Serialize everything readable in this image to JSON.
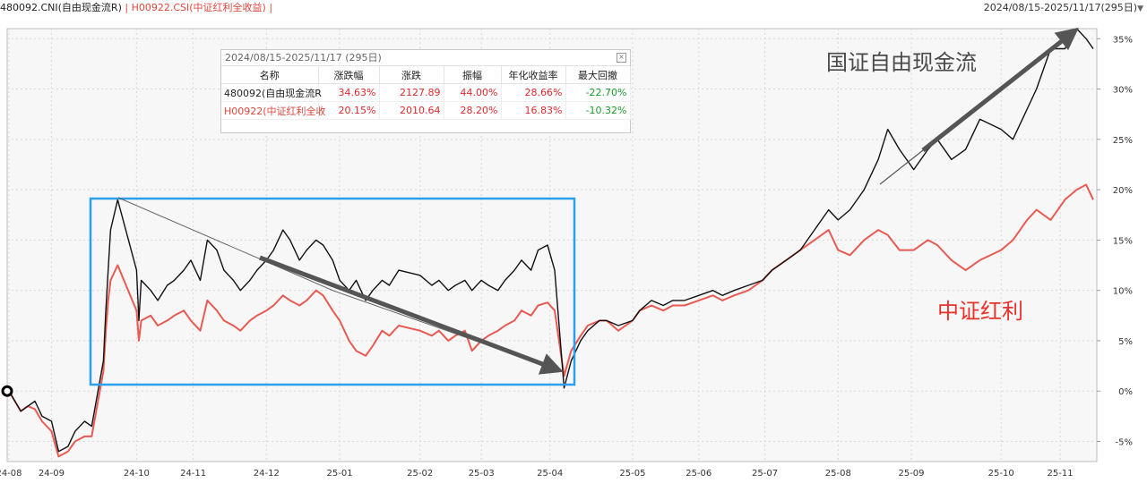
{
  "header": {
    "series1_label": "480092.CNI(自由现金流R)",
    "separator": "|",
    "series2_label": "H00922.CSI(中证红利全收益)",
    "range_label": "2024/08/15-2025/11/17(295日)",
    "range_arrow": "▼"
  },
  "stats": {
    "title": "2024/08/15-2025/11/17 (295日)",
    "close_glyph": "×",
    "columns": [
      "名称",
      "涨跌幅",
      "涨跌",
      "振幅",
      "年化收益率",
      "最大回撤"
    ],
    "rows": [
      {
        "name": "480092(自由现金流R",
        "change_pct": "34.63%",
        "change": "2127.89",
        "amplitude": "44.00%",
        "annual": "28.66%",
        "drawdown": "-22.70%"
      },
      {
        "name": "H00922(中证红利全收",
        "change_pct": "20.15%",
        "change": "2010.64",
        "amplitude": "28.20%",
        "annual": "16.83%",
        "drawdown": "-10.32%"
      }
    ]
  },
  "annotations": {
    "label_black": "国证自由现金流",
    "label_red": "中证红利"
  },
  "colors": {
    "series1": "#111111",
    "series2": "#e85a52",
    "highlight_box": "#2ea0ea",
    "arrow": "#555555",
    "grid": "#d8d8d8"
  },
  "chart_data": {
    "type": "line",
    "ylim": [
      -7,
      36
    ],
    "y_ticks": [
      "35%",
      "30%",
      "25%",
      "20%",
      "15%",
      "10%",
      "5%",
      "0%",
      "-5%"
    ],
    "y_tick_values": [
      35,
      30,
      25,
      20,
      15,
      10,
      5,
      0,
      -5
    ],
    "x_tick_labels": [
      "24-08",
      "24-09",
      "24-10",
      "24-11",
      "24-12",
      "25-01",
      "25-02",
      "25-03",
      "25-04",
      "25-05",
      "25-06",
      "25-07",
      "25-08",
      "25-09",
      "25-10",
      "25-11"
    ],
    "x_ticks": [
      "2024-08-15",
      "2024-09-02",
      "2024-10-08",
      "2024-11-01",
      "2024-12-02",
      "2025-01-02",
      "2025-02-05",
      "2025-03-03",
      "2025-04-01",
      "2025-05-06",
      "2025-06-03",
      "2025-07-01",
      "2025-08-01",
      "2025-09-01",
      "2025-10-09",
      "2025-11-03"
    ],
    "grid": true,
    "series": [
      {
        "name": "480092.CNI(自由现金流R)",
        "points": [
          [
            "2024-08-15",
            0
          ],
          [
            "2024-08-20",
            -2
          ],
          [
            "2024-08-23",
            -1.5
          ],
          [
            "2024-08-26",
            -1
          ],
          [
            "2024-08-29",
            -2.5
          ],
          [
            "2024-09-02",
            -3
          ],
          [
            "2024-09-05",
            -6
          ],
          [
            "2024-09-09",
            -5.5
          ],
          [
            "2024-09-12",
            -4
          ],
          [
            "2024-09-16",
            -3
          ],
          [
            "2024-09-19",
            -3.5
          ],
          [
            "2024-09-24",
            3
          ],
          [
            "2024-09-25",
            8
          ],
          [
            "2024-09-26",
            12
          ],
          [
            "2024-09-27",
            16
          ],
          [
            "2024-09-30",
            19
          ],
          [
            "2024-10-08",
            12
          ],
          [
            "2024-10-09",
            7
          ],
          [
            "2024-10-10",
            11
          ],
          [
            "2024-10-14",
            10
          ],
          [
            "2024-10-17",
            9
          ],
          [
            "2024-10-21",
            10.5
          ],
          [
            "2024-10-24",
            11
          ],
          [
            "2024-10-28",
            12
          ],
          [
            "2024-10-31",
            13
          ],
          [
            "2024-11-04",
            11
          ],
          [
            "2024-11-07",
            15
          ],
          [
            "2024-11-11",
            14
          ],
          [
            "2024-11-14",
            12
          ],
          [
            "2024-11-18",
            11
          ],
          [
            "2024-11-21",
            10
          ],
          [
            "2024-11-25",
            11
          ],
          [
            "2024-11-28",
            12
          ],
          [
            "2024-12-02",
            13
          ],
          [
            "2024-12-05",
            14
          ],
          [
            "2024-12-09",
            16
          ],
          [
            "2024-12-12",
            15
          ],
          [
            "2024-12-16",
            13
          ],
          [
            "2024-12-19",
            14
          ],
          [
            "2024-12-23",
            15
          ],
          [
            "2024-12-26",
            14.5
          ],
          [
            "2024-12-30",
            13
          ],
          [
            "2025-01-02",
            11
          ],
          [
            "2025-01-06",
            10
          ],
          [
            "2025-01-09",
            11
          ],
          [
            "2025-01-13",
            9
          ],
          [
            "2025-01-16",
            10
          ],
          [
            "2025-01-20",
            11
          ],
          [
            "2025-01-23",
            10.5
          ],
          [
            "2025-01-27",
            12
          ],
          [
            "2025-02-05",
            11.5
          ],
          [
            "2025-02-10",
            10.5
          ],
          [
            "2025-02-13",
            11
          ],
          [
            "2025-02-17",
            10
          ],
          [
            "2025-02-20",
            10.5
          ],
          [
            "2025-02-24",
            11
          ],
          [
            "2025-02-27",
            10
          ],
          [
            "2025-03-03",
            11
          ],
          [
            "2025-03-06",
            10.5
          ],
          [
            "2025-03-10",
            10
          ],
          [
            "2025-03-13",
            11
          ],
          [
            "2025-03-17",
            12
          ],
          [
            "2025-03-20",
            13
          ],
          [
            "2025-03-24",
            12
          ],
          [
            "2025-03-27",
            14
          ],
          [
            "2025-03-31",
            14.5
          ],
          [
            "2025-04-03",
            12
          ],
          [
            "2025-04-07",
            0.3
          ],
          [
            "2025-04-10",
            3
          ],
          [
            "2025-04-14",
            5
          ],
          [
            "2025-04-17",
            6
          ],
          [
            "2025-04-22",
            7
          ],
          [
            "2025-04-25",
            7
          ],
          [
            "2025-04-30",
            6.5
          ],
          [
            "2025-05-06",
            7
          ],
          [
            "2025-05-09",
            8
          ],
          [
            "2025-05-14",
            9
          ],
          [
            "2025-05-19",
            8.5
          ],
          [
            "2025-05-23",
            9
          ],
          [
            "2025-05-28",
            9
          ],
          [
            "2025-06-03",
            9.5
          ],
          [
            "2025-06-09",
            10
          ],
          [
            "2025-06-13",
            9.5
          ],
          [
            "2025-06-18",
            10
          ],
          [
            "2025-06-24",
            10.5
          ],
          [
            "2025-06-30",
            11
          ],
          [
            "2025-07-04",
            12
          ],
          [
            "2025-07-10",
            13
          ],
          [
            "2025-07-16",
            14
          ],
          [
            "2025-07-22",
            16
          ],
          [
            "2025-07-28",
            18
          ],
          [
            "2025-08-01",
            17
          ],
          [
            "2025-08-06",
            18
          ],
          [
            "2025-08-12",
            20
          ],
          [
            "2025-08-18",
            23
          ],
          [
            "2025-08-22",
            26
          ],
          [
            "2025-08-27",
            24
          ],
          [
            "2025-09-02",
            22
          ],
          [
            "2025-09-08",
            24
          ],
          [
            "2025-09-12",
            25
          ],
          [
            "2025-09-18",
            23
          ],
          [
            "2025-09-24",
            24
          ],
          [
            "2025-09-30",
            27
          ],
          [
            "2025-10-09",
            26
          ],
          [
            "2025-10-14",
            25
          ],
          [
            "2025-10-20",
            28
          ],
          [
            "2025-10-24",
            30
          ],
          [
            "2025-10-30",
            34
          ],
          [
            "2025-11-05",
            34
          ],
          [
            "2025-11-10",
            36
          ],
          [
            "2025-11-14",
            35
          ],
          [
            "2025-11-17",
            34
          ]
        ]
      },
      {
        "name": "H00922.CSI(中证红利全收益)",
        "points": [
          [
            "2024-08-15",
            0
          ],
          [
            "2024-08-20",
            -2
          ],
          [
            "2024-08-23",
            -1.5
          ],
          [
            "2024-08-26",
            -1.8
          ],
          [
            "2024-08-29",
            -3
          ],
          [
            "2024-09-02",
            -4
          ],
          [
            "2024-09-05",
            -6.5
          ],
          [
            "2024-09-09",
            -6
          ],
          [
            "2024-09-12",
            -5
          ],
          [
            "2024-09-16",
            -4.5
          ],
          [
            "2024-09-19",
            -4.5
          ],
          [
            "2024-09-24",
            2
          ],
          [
            "2024-09-25",
            6
          ],
          [
            "2024-09-26",
            9
          ],
          [
            "2024-09-27",
            11
          ],
          [
            "2024-09-30",
            12.5
          ],
          [
            "2024-10-08",
            8
          ],
          [
            "2024-10-09",
            5
          ],
          [
            "2024-10-10",
            7
          ],
          [
            "2024-10-14",
            7.5
          ],
          [
            "2024-10-17",
            6.5
          ],
          [
            "2024-10-21",
            7
          ],
          [
            "2024-10-24",
            7.5
          ],
          [
            "2024-10-28",
            8
          ],
          [
            "2024-10-31",
            7
          ],
          [
            "2024-11-04",
            6
          ],
          [
            "2024-11-07",
            9
          ],
          [
            "2024-11-11",
            8
          ],
          [
            "2024-11-14",
            7
          ],
          [
            "2024-11-18",
            6.5
          ],
          [
            "2024-11-21",
            6
          ],
          [
            "2024-11-25",
            7
          ],
          [
            "2024-11-28",
            7.5
          ],
          [
            "2024-12-02",
            8
          ],
          [
            "2024-12-05",
            8.5
          ],
          [
            "2024-12-09",
            9.5
          ],
          [
            "2024-12-12",
            9
          ],
          [
            "2024-12-16",
            8.5
          ],
          [
            "2024-12-19",
            9
          ],
          [
            "2024-12-23",
            10
          ],
          [
            "2024-12-26",
            9.5
          ],
          [
            "2024-12-30",
            8
          ],
          [
            "2025-01-02",
            7
          ],
          [
            "2025-01-06",
            5
          ],
          [
            "2025-01-09",
            4
          ],
          [
            "2025-01-13",
            3.5
          ],
          [
            "2025-01-16",
            4.5
          ],
          [
            "2025-01-20",
            6
          ],
          [
            "2025-01-23",
            5.5
          ],
          [
            "2025-01-27",
            6.5
          ],
          [
            "2025-02-05",
            6
          ],
          [
            "2025-02-10",
            5.5
          ],
          [
            "2025-02-13",
            6
          ],
          [
            "2025-02-17",
            5
          ],
          [
            "2025-02-20",
            5.5
          ],
          [
            "2025-02-24",
            6
          ],
          [
            "2025-02-27",
            4
          ],
          [
            "2025-03-03",
            5
          ],
          [
            "2025-03-06",
            5.5
          ],
          [
            "2025-03-10",
            6
          ],
          [
            "2025-03-13",
            6.5
          ],
          [
            "2025-03-17",
            7
          ],
          [
            "2025-03-20",
            8
          ],
          [
            "2025-03-24",
            7.5
          ],
          [
            "2025-03-27",
            8.5
          ],
          [
            "2025-03-31",
            8.8
          ],
          [
            "2025-04-03",
            8
          ],
          [
            "2025-04-07",
            1.5
          ],
          [
            "2025-04-10",
            4
          ],
          [
            "2025-04-14",
            5.5
          ],
          [
            "2025-04-17",
            6.5
          ],
          [
            "2025-04-22",
            7
          ],
          [
            "2025-04-25",
            7
          ],
          [
            "2025-04-30",
            6
          ],
          [
            "2025-05-06",
            7
          ],
          [
            "2025-05-09",
            8
          ],
          [
            "2025-05-14",
            8.5
          ],
          [
            "2025-05-19",
            8
          ],
          [
            "2025-05-23",
            8.5
          ],
          [
            "2025-05-28",
            8.5
          ],
          [
            "2025-06-03",
            9
          ],
          [
            "2025-06-09",
            9.5
          ],
          [
            "2025-06-13",
            9
          ],
          [
            "2025-06-18",
            9.5
          ],
          [
            "2025-06-24",
            10
          ],
          [
            "2025-06-30",
            11
          ],
          [
            "2025-07-04",
            12
          ],
          [
            "2025-07-10",
            13
          ],
          [
            "2025-07-16",
            14
          ],
          [
            "2025-07-22",
            15
          ],
          [
            "2025-07-28",
            16
          ],
          [
            "2025-08-01",
            14
          ],
          [
            "2025-08-06",
            13.5
          ],
          [
            "2025-08-12",
            15
          ],
          [
            "2025-08-18",
            16
          ],
          [
            "2025-08-22",
            15.5
          ],
          [
            "2025-08-27",
            14
          ],
          [
            "2025-09-02",
            14
          ],
          [
            "2025-09-08",
            15
          ],
          [
            "2025-09-12",
            14.5
          ],
          [
            "2025-09-18",
            13
          ],
          [
            "2025-09-24",
            12
          ],
          [
            "2025-09-30",
            13
          ],
          [
            "2025-10-09",
            14
          ],
          [
            "2025-10-14",
            15
          ],
          [
            "2025-10-20",
            17
          ],
          [
            "2025-10-24",
            18
          ],
          [
            "2025-10-30",
            17
          ],
          [
            "2025-11-05",
            19
          ],
          [
            "2025-11-10",
            20
          ],
          [
            "2025-11-14",
            20.5
          ],
          [
            "2025-11-17",
            19
          ]
        ]
      }
    ]
  }
}
